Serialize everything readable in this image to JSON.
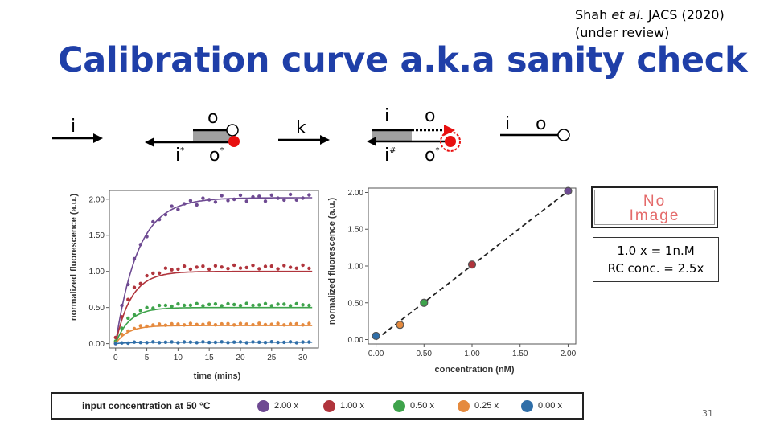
{
  "slide": {
    "citation_prefix": "Shah ",
    "citation_italic": "et al.",
    "citation_suffix": " JACS (2020)",
    "citation_line2": "(under review)",
    "title": "Calibration curve a.k.a sanity check",
    "page_number": "31"
  },
  "schematic": {
    "colors": {
      "strand": "#000000",
      "duplex": "#a0a0a0",
      "quencher": "#e81010",
      "fluor": "#ffffff"
    },
    "g1": {
      "input": "i"
    },
    "g2": {
      "top": "o",
      "bottom_left": "i",
      "bottom_left_sup": "*",
      "bottom_right": "o",
      "bottom_right_sup": "*"
    },
    "g3": {
      "label": "k"
    },
    "g4": {
      "top_left": "i",
      "top_right": "o",
      "bottom_left": "i",
      "bottom_left_sup": "#",
      "bottom_right": "o",
      "bottom_right_sup": "*"
    },
    "g5": {
      "left": "i",
      "right": "o"
    }
  },
  "no_image": {
    "line1": "No",
    "line2": "Image"
  },
  "note": {
    "line1": "1.0 x = 1n.M",
    "line2": "RC conc. = 2.5x"
  },
  "legend": {
    "title": "input concentration at 50 °C",
    "items": [
      {
        "label": "2.00 x",
        "color": "#6e4a92"
      },
      {
        "label": "1.00 x",
        "color": "#b0343c"
      },
      {
        "label": "0.50 x",
        "color": "#3ea34b"
      },
      {
        "label": "0.25 x",
        "color": "#e58a3e"
      },
      {
        "label": "0.00 x",
        "color": "#2f6ea8"
      }
    ]
  },
  "chart_data": [
    {
      "type": "line",
      "xlabel": "time (mins)",
      "ylabel": "normalized fluorescence (a.u.)",
      "xlim": [
        -1,
        32.5
      ],
      "ylim": [
        -0.06,
        2.12
      ],
      "x_ticks": [
        0,
        5,
        10,
        15,
        20,
        25,
        30
      ],
      "x_tick_labels": [
        "0",
        "5",
        "10",
        "15",
        "20",
        "25",
        "30"
      ],
      "y_ticks": [
        0,
        0.5,
        1.0,
        1.5,
        2.0
      ],
      "y_tick_labels": [
        "0.00",
        "0.50",
        "1.00",
        "1.50",
        "2.00"
      ],
      "grid": false,
      "series": [
        {
          "name": "2.00 x",
          "color": "#6e4a92",
          "plateau": 2.02,
          "rate": 0.28,
          "data_offset": 0.0
        },
        {
          "name": "1.00 x",
          "color": "#b0343c",
          "plateau": 1.0,
          "rate": 0.4,
          "data_offset": 0.06
        },
        {
          "name": "0.50 x",
          "color": "#3ea34b",
          "plateau": 0.5,
          "rate": 0.45,
          "data_offset": 0.04
        },
        {
          "name": "0.25 x",
          "color": "#e58a3e",
          "plateau": 0.25,
          "rate": 0.5,
          "data_offset": 0.02
        },
        {
          "name": "0.00 x",
          "color": "#2f6ea8",
          "plateau": 0.02,
          "rate": 0.5,
          "data_offset": 0.0
        }
      ]
    },
    {
      "type": "scatter",
      "xlabel": "concentration (nM)",
      "ylabel": "normalized fluorescence (a.u.)",
      "xlim": [
        -0.08,
        2.08
      ],
      "ylim": [
        -0.06,
        2.06
      ],
      "x_ticks": [
        0,
        0.5,
        1.0,
        1.5,
        2.0
      ],
      "x_tick_labels": [
        "0.00",
        "0.50",
        "1.00",
        "1.50",
        "2.00"
      ],
      "y_ticks": [
        0,
        0.5,
        1.0,
        1.5,
        2.0
      ],
      "y_tick_labels": [
        "0.00",
        "0.50",
        "1.00",
        "1.50",
        "2.00"
      ],
      "grid": false,
      "points": [
        {
          "x": 0.0,
          "y": 0.05,
          "color": "#2f6ea8"
        },
        {
          "x": 0.25,
          "y": 0.2,
          "color": "#e58a3e"
        },
        {
          "x": 0.5,
          "y": 0.5,
          "color": "#3ea34b"
        },
        {
          "x": 1.0,
          "y": 1.02,
          "color": "#b0343c"
        },
        {
          "x": 2.0,
          "y": 2.02,
          "color": "#6e4a92"
        }
      ],
      "fit_line": {
        "x": [
          0.0,
          2.0
        ],
        "y": [
          0.0,
          2.02
        ],
        "style": "dashed"
      }
    }
  ]
}
